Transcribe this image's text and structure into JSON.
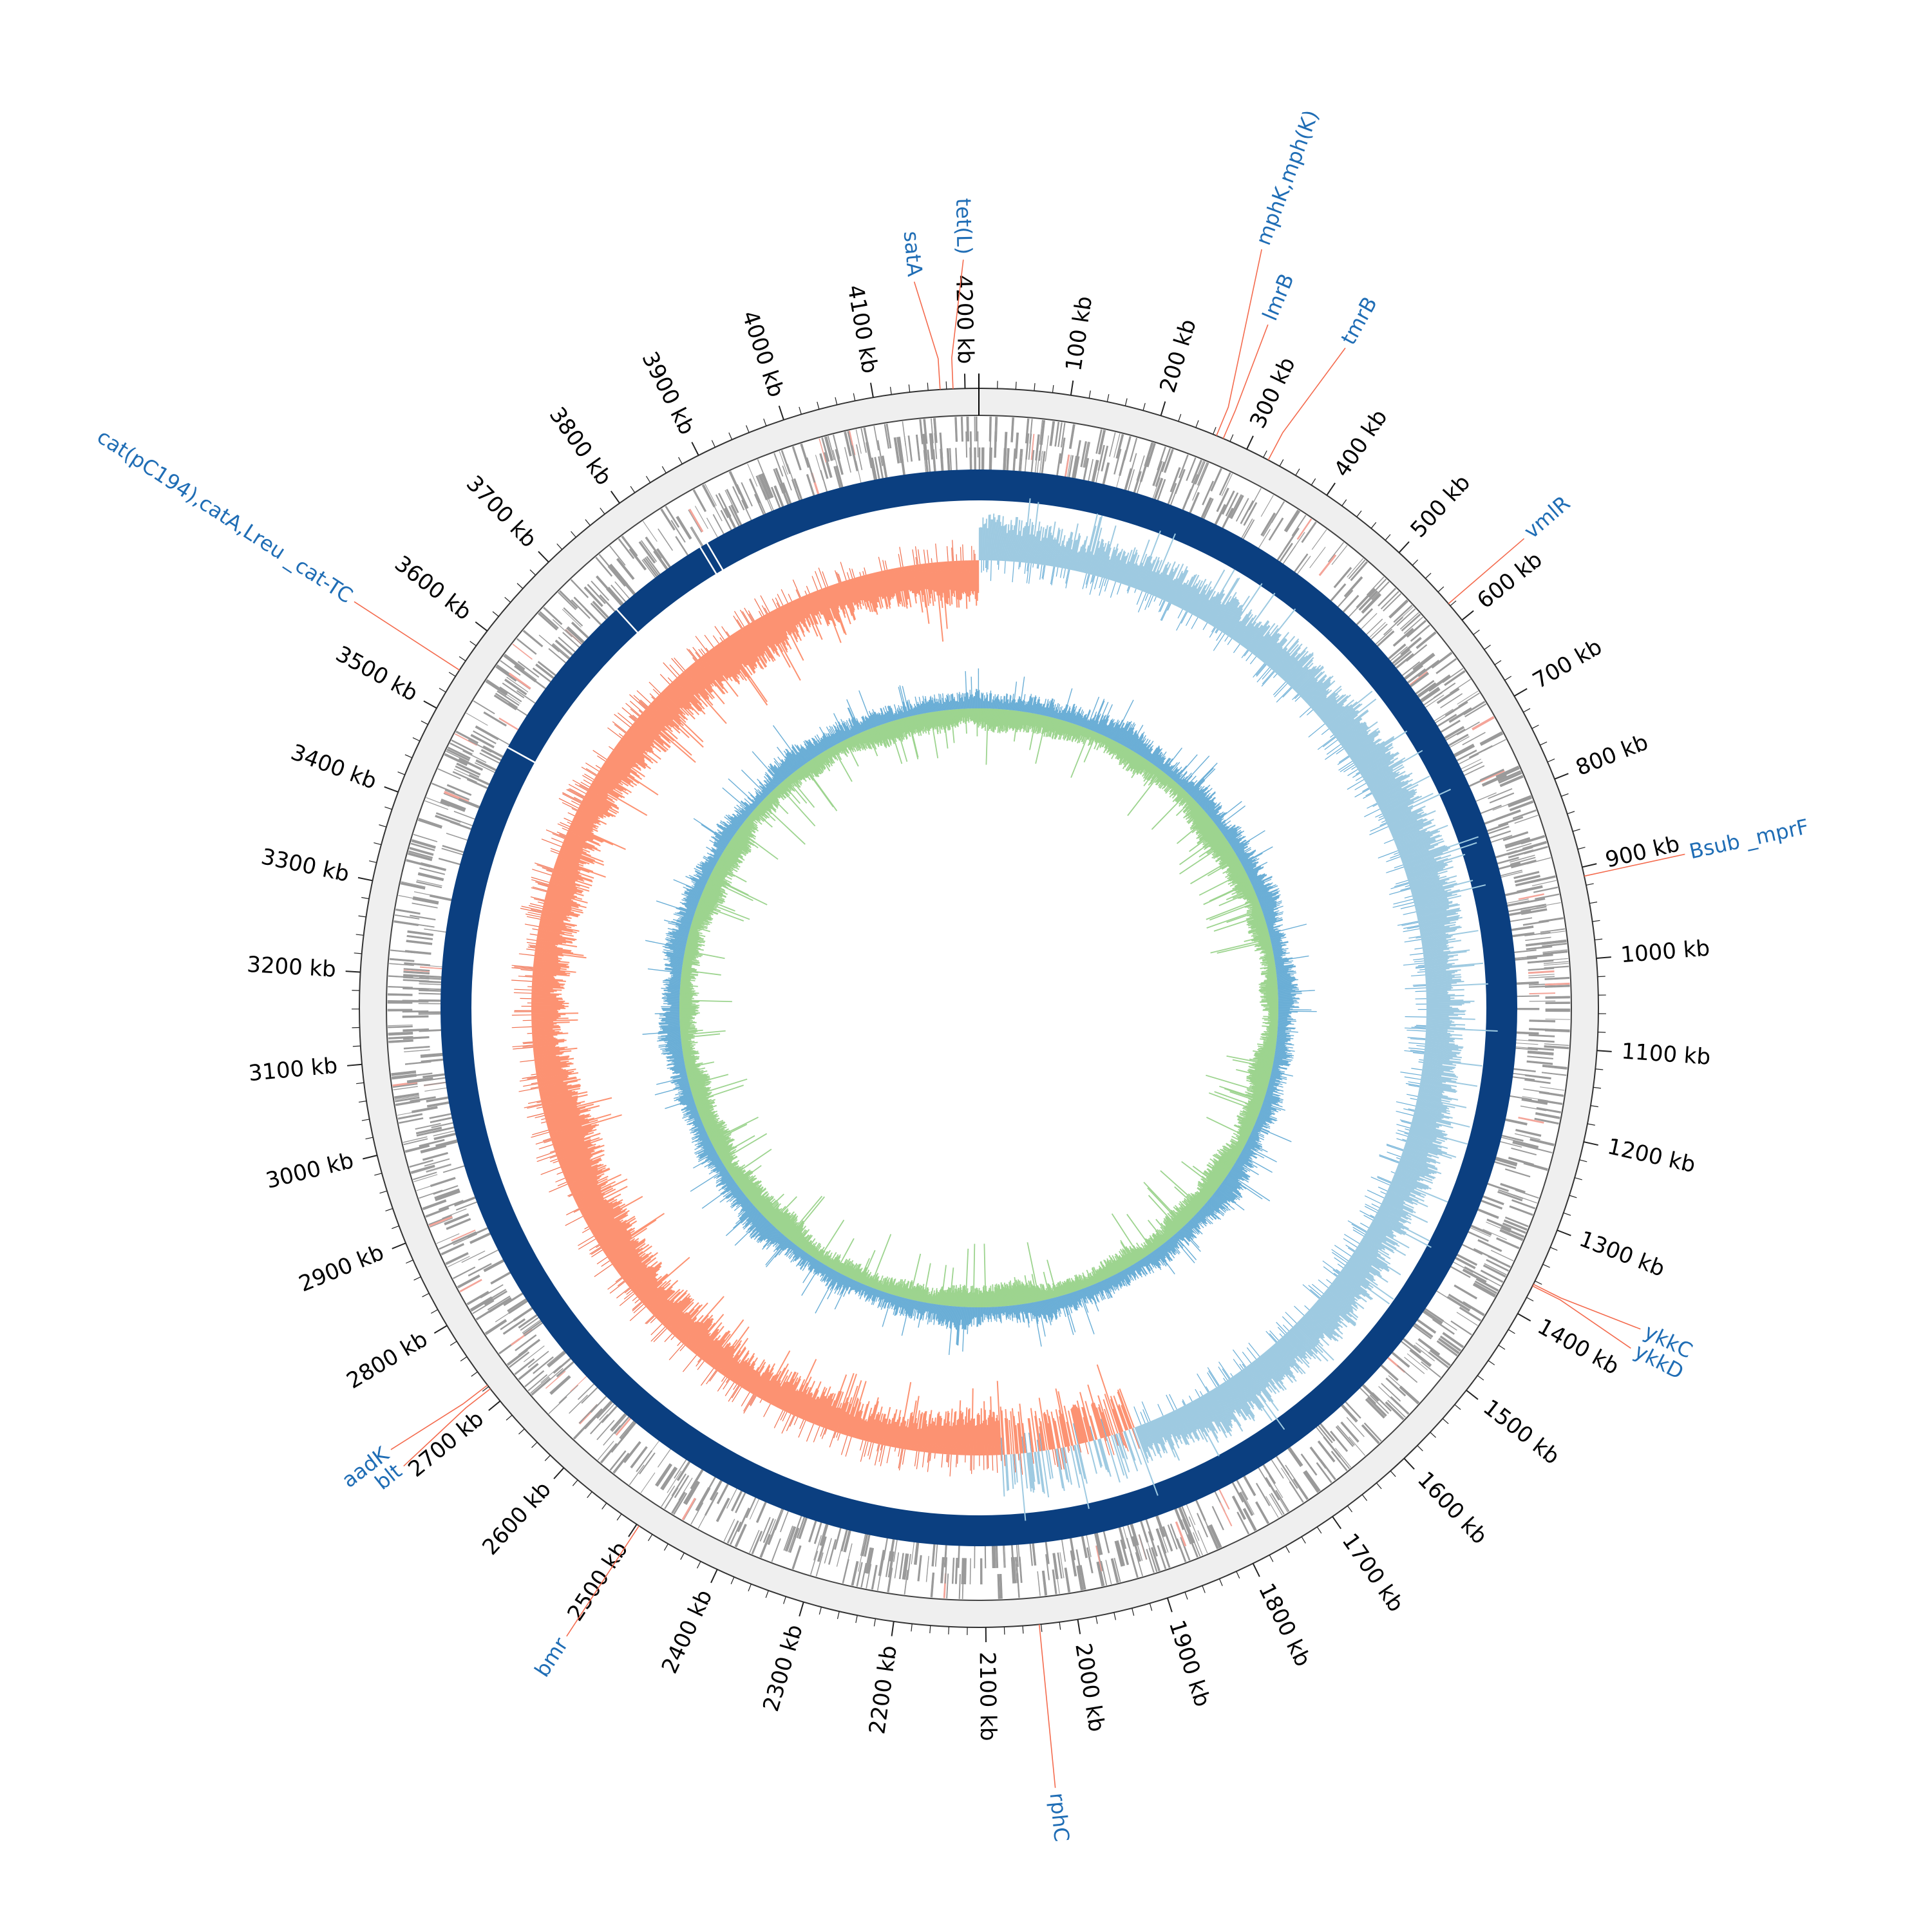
{
  "chart_data": {
    "type": "circular-genome-map",
    "genome_length_kb": 4215,
    "ticks_kb": [
      100,
      200,
      300,
      400,
      500,
      600,
      700,
      800,
      900,
      1000,
      1100,
      1200,
      1300,
      1400,
      1500,
      1600,
      1700,
      1800,
      1900,
      2000,
      2100,
      2200,
      2300,
      2400,
      2500,
      2600,
      2700,
      2800,
      2900,
      3000,
      3100,
      3200,
      3300,
      3400,
      3500,
      3600,
      3700,
      3800,
      3900,
      4000,
      4100,
      4200
    ],
    "tick_unit": "kb",
    "genes": [
      {
        "name": "tet(L)",
        "kb": 4187
      },
      {
        "name": "satA",
        "kb": 4173
      },
      {
        "name": "mphK,mph(K)",
        "kb": 264
      },
      {
        "name": "lmrB",
        "kb": 272
      },
      {
        "name": "tmrB",
        "kb": 326
      },
      {
        "name": "vmlR",
        "kb": 577
      },
      {
        "name": "Bsub _mprF",
        "kb": 910
      },
      {
        "name": "ykkC",
        "kb": 1364
      },
      {
        "name": "ykkD",
        "kb": 1366
      },
      {
        "name": "rphC",
        "kb": 2042
      },
      {
        "name": "bmr",
        "kb": 2497
      },
      {
        "name": "blt",
        "kb": 2717
      },
      {
        "name": "aadK",
        "kb": 2722
      },
      {
        "name": "cat(pC194),catA,Lreu _cat-TC",
        "kb": 3548
      }
    ],
    "tracks": [
      "ticks",
      "CDS",
      "backbone",
      "GC skew",
      "GC content"
    ]
  },
  "colors": {
    "background": "#ffffff",
    "outer_band": "#efefef",
    "outer_band_stroke": "#555555",
    "cds": "#9a9a9a",
    "cds_highlight": "#f4a59a",
    "backbone": "#0b3f80",
    "gc_skew_positive": "#9ecae1",
    "gc_skew_positive_line": "#6aaed6",
    "gc_skew_negative": "#fc9272",
    "gc_skew_negative_line": "#f0704f",
    "gc_content_inner": "#9dd48f",
    "gc_content_inner_line": "#6fbf63",
    "gc_content_outer_line": "#6aaed6",
    "label_text": "#1f6db5",
    "label_line": "#f46b4e",
    "tick_text": "#000000"
  }
}
